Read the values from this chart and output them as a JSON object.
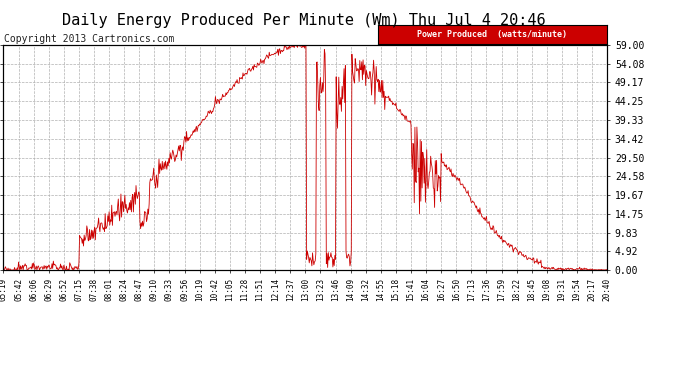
{
  "title": "Daily Energy Produced Per Minute (Wm) Thu Jul 4 20:46",
  "copyright": "Copyright 2013 Cartronics.com",
  "legend_label": "Power Produced  (watts/minute)",
  "legend_bg": "#cc0000",
  "legend_fg": "#ffffff",
  "line_color": "#cc0000",
  "bg_color": "#ffffff",
  "grid_color": "#b0b0b0",
  "ylim": [
    0,
    59.0
  ],
  "yticks": [
    0.0,
    4.92,
    9.83,
    14.75,
    19.67,
    24.58,
    29.5,
    34.42,
    39.33,
    44.25,
    49.17,
    54.08,
    59.0
  ],
  "ytick_labels": [
    "0.00",
    "4.92",
    "9.83",
    "14.75",
    "19.67",
    "24.58",
    "29.50",
    "34.42",
    "39.33",
    "44.25",
    "49.17",
    "54.08",
    "59.00"
  ],
  "title_fontsize": 11,
  "copyright_fontsize": 7,
  "xtick_fontsize": 5.5,
  "ytick_fontsize": 7,
  "x_labels": [
    "05:19",
    "05:42",
    "06:06",
    "06:29",
    "06:52",
    "07:15",
    "07:38",
    "08:01",
    "08:24",
    "08:47",
    "09:10",
    "09:33",
    "09:56",
    "10:19",
    "10:42",
    "11:05",
    "11:28",
    "11:51",
    "12:14",
    "12:37",
    "13:00",
    "13:23",
    "13:46",
    "14:09",
    "14:32",
    "14:55",
    "15:18",
    "15:41",
    "16:04",
    "16:27",
    "16:50",
    "17:13",
    "17:36",
    "17:59",
    "18:22",
    "18:45",
    "19:08",
    "19:31",
    "19:54",
    "20:17",
    "20:40"
  ],
  "figsize": [
    6.9,
    3.75
  ],
  "dpi": 100
}
